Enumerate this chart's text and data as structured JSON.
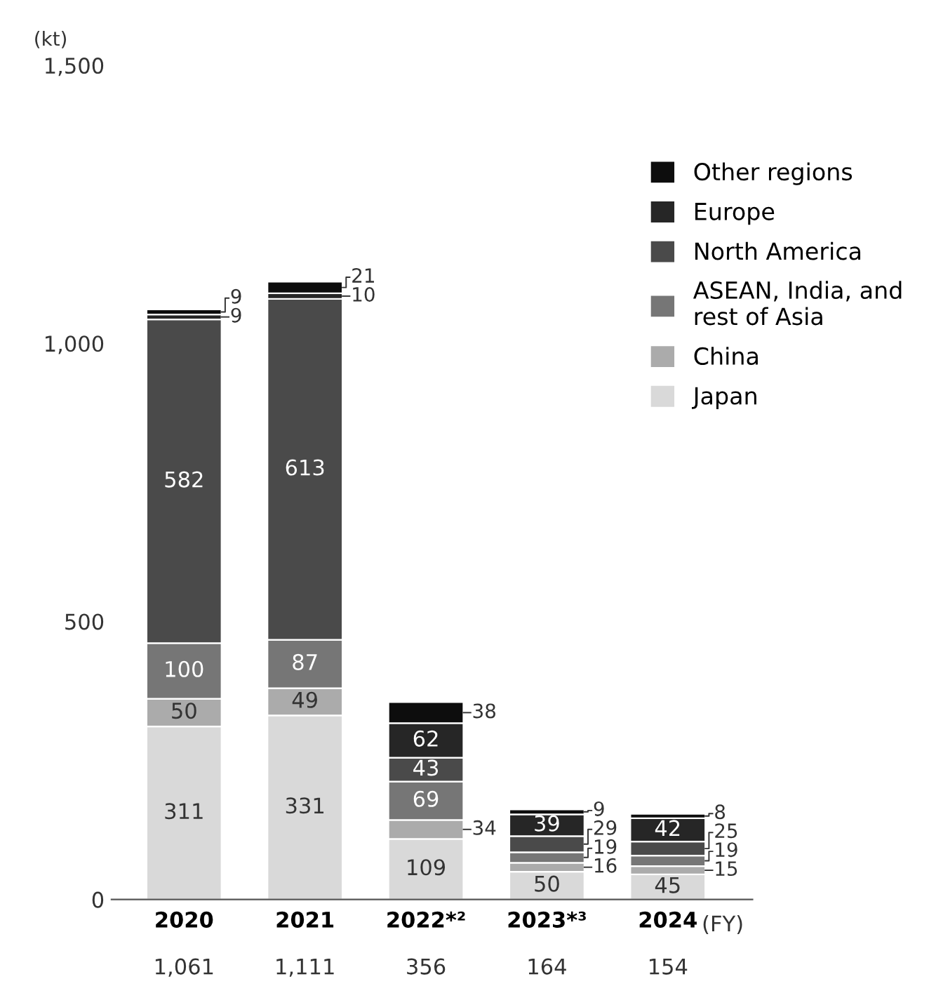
{
  "chart_data": {
    "type": "bar",
    "stacked": true,
    "ylabel": "(kt)",
    "xlabel": "(FY)",
    "categories": [
      "2020",
      "2021",
      "2022*²",
      "2023*³",
      "2024"
    ],
    "totals": [
      "1,061",
      "1,111",
      "356",
      "164",
      "154"
    ],
    "series": [
      {
        "name": "Japan",
        "color": "#d9d9d9",
        "values": [
          311,
          331,
          109,
          50,
          45
        ]
      },
      {
        "name": "China",
        "color": "#ababab",
        "values": [
          50,
          49,
          34,
          16,
          15
        ]
      },
      {
        "name": "ASEAN, India, and\nrest of Asia",
        "color": "#767676",
        "values": [
          100,
          87,
          69,
          19,
          19
        ]
      },
      {
        "name": "North America",
        "color": "#4a4a4a",
        "values": [
          582,
          613,
          43,
          29,
          25
        ]
      },
      {
        "name": "Europe",
        "color": "#262626",
        "values": [
          9,
          10,
          62,
          39,
          42
        ]
      },
      {
        "name": "Other regions",
        "color": "#0d0d0d",
        "values": [
          9,
          21,
          38,
          9,
          8
        ]
      }
    ],
    "ylim": [
      0,
      1500
    ],
    "yticks": [
      0,
      500,
      {
        "value": 1000,
        "label": "1,000"
      },
      {
        "value": 1500,
        "label": "1,500"
      }
    ],
    "data_labels": true,
    "legend": "top right",
    "grid": false
  }
}
